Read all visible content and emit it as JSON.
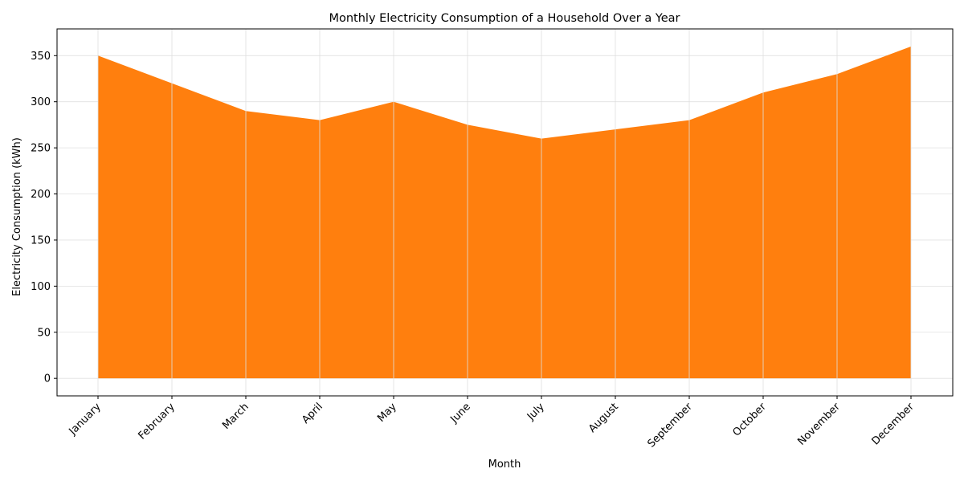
{
  "chart_data": {
    "type": "area",
    "title": "Monthly Electricity Consumption of a Household Over a Year",
    "xlabel": "Month",
    "ylabel": "Electricity Consumption (kWh)",
    "categories": [
      "January",
      "February",
      "March",
      "April",
      "May",
      "June",
      "July",
      "August",
      "September",
      "October",
      "November",
      "December"
    ],
    "series": [
      {
        "values": [
          350,
          320,
          290,
          280,
          300,
          275,
          260,
          270,
          280,
          310,
          330,
          360
        ]
      }
    ],
    "ylim": [
      -19,
      379
    ],
    "yticks": [
      0,
      50,
      100,
      150,
      200,
      250,
      300,
      350
    ],
    "grid": true,
    "legend": "none",
    "colors": {
      "fill": "#ff7f0e",
      "grid": "#e0e0e0",
      "axis": "#000000"
    }
  }
}
